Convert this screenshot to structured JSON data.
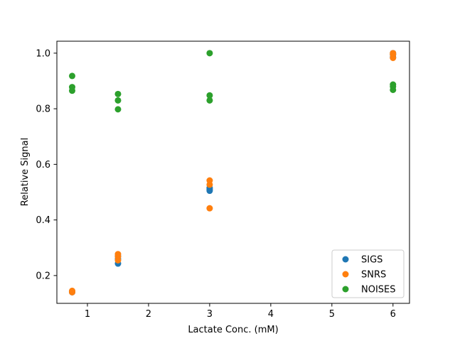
{
  "chart_data": {
    "type": "scatter",
    "xlabel": "Lactate Conc. (mM)",
    "ylabel": "Relative Signal",
    "xlim": [
      0.5,
      6.27
    ],
    "ylim": [
      0.1,
      1.043
    ],
    "xticks": [
      1,
      2,
      3,
      4,
      5,
      6
    ],
    "yticks": [
      0.2,
      0.4,
      0.6,
      0.8,
      1.0
    ],
    "ytick_labels": [
      "0.2",
      "0.4",
      "0.6",
      "0.8",
      "1.0"
    ],
    "grid": false,
    "legend_position": "bottom-right",
    "series": [
      {
        "name": "SIGS",
        "color": "#1f77b4",
        "points": [
          [
            0.75,
            0.14
          ],
          [
            0.75,
            0.142
          ],
          [
            0.75,
            0.143
          ],
          [
            1.5,
            0.243
          ],
          [
            1.5,
            0.26
          ],
          [
            1.5,
            0.27
          ],
          [
            3.0,
            0.505
          ],
          [
            3.0,
            0.51
          ],
          [
            3.0,
            0.515
          ],
          [
            6.0,
            0.985
          ],
          [
            6.0,
            0.995
          ],
          [
            6.0,
            1.0
          ]
        ]
      },
      {
        "name": "SNRS",
        "color": "#ff7f0e",
        "points": [
          [
            0.75,
            0.14
          ],
          [
            0.75,
            0.143
          ],
          [
            0.75,
            0.145
          ],
          [
            1.5,
            0.255
          ],
          [
            1.5,
            0.268
          ],
          [
            1.5,
            0.277
          ],
          [
            3.0,
            0.442
          ],
          [
            3.0,
            0.527
          ],
          [
            3.0,
            0.542
          ],
          [
            6.0,
            0.983
          ],
          [
            6.0,
            0.995
          ],
          [
            6.0,
            1.0
          ]
        ]
      },
      {
        "name": "NOISES",
        "color": "#2ca02c",
        "points": [
          [
            0.75,
            0.865
          ],
          [
            0.75,
            0.878
          ],
          [
            0.75,
            0.918
          ],
          [
            1.5,
            0.798
          ],
          [
            1.5,
            0.83
          ],
          [
            1.5,
            0.853
          ],
          [
            3.0,
            0.83
          ],
          [
            3.0,
            0.848
          ],
          [
            3.0,
            1.0
          ],
          [
            6.0,
            0.868
          ],
          [
            6.0,
            0.88
          ],
          [
            6.0,
            0.887
          ]
        ]
      }
    ]
  }
}
